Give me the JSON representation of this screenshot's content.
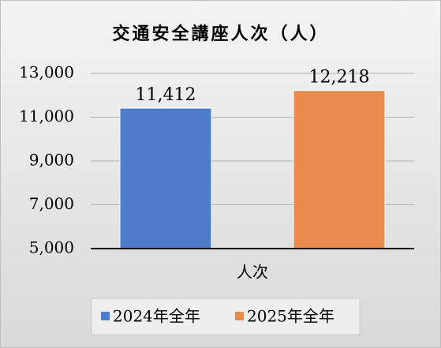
{
  "chart_data": {
    "type": "bar",
    "title": "交通安全講座人次（人）",
    "categories": [
      "人次"
    ],
    "series": [
      {
        "name": "2024年全年",
        "color": "#4e7ccb",
        "values": [
          11412
        ],
        "value_labels": [
          "11,412"
        ]
      },
      {
        "name": "2025年全年",
        "color": "#ea8a4c",
        "values": [
          12218
        ],
        "value_labels": [
          "12,218"
        ]
      }
    ],
    "ylim": [
      5000,
      13000
    ],
    "yticks": [
      {
        "value": 5000,
        "label": "5,000"
      },
      {
        "value": 7000,
        "label": "7,000"
      },
      {
        "value": 9000,
        "label": "9,000"
      },
      {
        "value": 11000,
        "label": "11,000"
      },
      {
        "value": 13000,
        "label": "13,000"
      }
    ],
    "grid": true,
    "legend": "bottom"
  }
}
